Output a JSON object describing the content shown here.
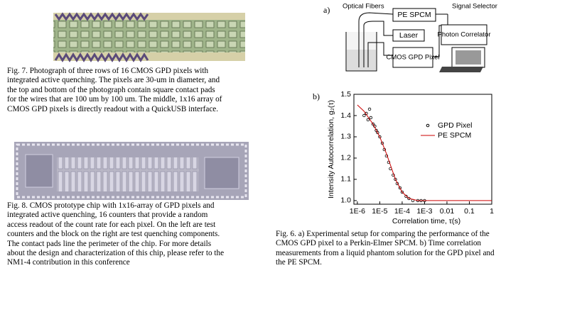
{
  "figures": {
    "fig7": {
      "caption_lines": [
        "Fig. 7.  Photograph of three rows of 16 CMOS GPD pixels with",
        "integrated active quenching.  The pixels are 30-um in diameter, and",
        "the top and bottom of the photograph contain square contact pads",
        "for the wires that are 100 um by 100 um.  The middle, 1x16 array of",
        "CMOS GPD pixels is directly readout with a QuickUSB interface."
      ]
    },
    "fig8": {
      "caption_lines": [
        "Fig. 8.   CMOS prototype chip with 1x16-array of GPD pixels and",
        "integrated active quenching, 16 counters that provide a random",
        "access readout of the count rate for each pixel. On the left are test",
        "counters and the block on the right are test quenching components.",
        "The contact pads line the perimeter of the chip. For more details",
        "about the design and characterization of this chip, please refer to the",
        "NM1-4 contribution in this conference"
      ]
    },
    "fig6": {
      "caption_lines": [
        "Fig. 6. a) Experimental setup for comparing the performance of the",
        "CMOS GPD pixel to a Perkin-Elmer SPCM.  b) Time correlation",
        "measurements from a liquid phantom solution for the GPD pixel and",
        "the PE SPCM."
      ]
    }
  },
  "diagram": {
    "panel_label": "a)",
    "optical_fibers": "Optical Fibers",
    "pe_spcm": "PE SPCM",
    "laser": "Laser",
    "cmos_gpd": "CMOS GPD Pixel",
    "signal_selector": "Signal Selector",
    "photon_correlator": "Photon Correlator"
  },
  "chart_data": {
    "type": "line",
    "panel_label": "b)",
    "x_label": "Correlation time, τ(s)",
    "y_label": "Intensity Autocorrelation, g₂(τ)",
    "xscale": "log",
    "xlim": [
      7e-07,
      1
    ],
    "ylim": [
      0.983,
      1.5
    ],
    "xticks": [
      {
        "value": 1e-06,
        "label": "1E-6"
      },
      {
        "value": 1e-05,
        "label": "1E-5"
      },
      {
        "value": 0.0001,
        "label": "1E-4"
      },
      {
        "value": 0.001,
        "label": "1E-3"
      },
      0.01,
      0.1,
      1
    ],
    "yticks": [
      {
        "value": 1,
        "label": "1.0"
      },
      1.1,
      1.2,
      1.3,
      1.4,
      1.5
    ],
    "legend": "upper right",
    "series": [
      {
        "name": "GPD Pixel",
        "type": "scatter",
        "color": "#000000",
        "x": [
          2e-06,
          2.5e-06,
          3e-06,
          3.5e-06,
          4e-06,
          5e-06,
          6e-06,
          7e-06,
          8e-06,
          1e-05,
          1.3e-05,
          1.6e-05,
          2e-05,
          2.5e-05,
          3e-05,
          4e-05,
          5e-05,
          6e-05,
          8e-05,
          0.0001,
          0.00015,
          0.0002,
          0.0003,
          0.0005,
          0.0007,
          0.001
        ],
        "values": [
          1.4,
          1.41,
          1.38,
          1.43,
          1.39,
          1.36,
          1.35,
          1.33,
          1.32,
          1.3,
          1.27,
          1.24,
          1.21,
          1.18,
          1.15,
          1.12,
          1.1,
          1.08,
          1.06,
          1.04,
          1.02,
          1.01,
          1.0,
          1.0,
          1.0,
          1.0
        ]
      },
      {
        "name": "PE SPCM",
        "type": "line",
        "color": "#cc0000",
        "x": [
          1e-06,
          2e-06,
          5e-06,
          1e-05,
          2e-05,
          5e-05,
          0.0001,
          0.0002,
          0.0005,
          0.001,
          0.01,
          0.1,
          1
        ],
        "values": [
          1.45,
          1.42,
          1.36,
          1.3,
          1.22,
          1.1,
          1.04,
          1.01,
          1.0,
          1.0,
          1.0,
          1.0,
          1.0
        ]
      }
    ]
  }
}
